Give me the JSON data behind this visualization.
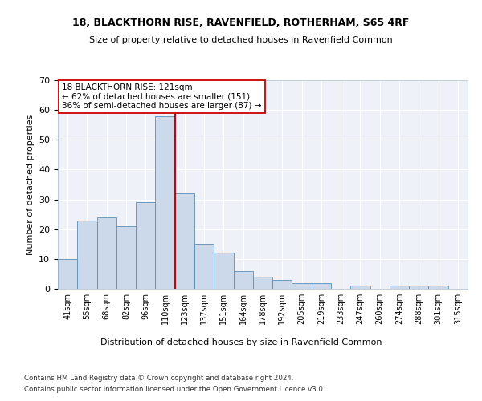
{
  "title1": "18, BLACKTHORN RISE, RAVENFIELD, ROTHERHAM, S65 4RF",
  "title2": "Size of property relative to detached houses in Ravenfield Common",
  "xlabel": "Distribution of detached houses by size in Ravenfield Common",
  "ylabel": "Number of detached properties",
  "categories": [
    "41sqm",
    "55sqm",
    "68sqm",
    "82sqm",
    "96sqm",
    "110sqm",
    "123sqm",
    "137sqm",
    "151sqm",
    "164sqm",
    "178sqm",
    "192sqm",
    "205sqm",
    "219sqm",
    "233sqm",
    "247sqm",
    "260sqm",
    "274sqm",
    "288sqm",
    "301sqm",
    "315sqm"
  ],
  "values": [
    10,
    23,
    24,
    21,
    29,
    58,
    32,
    15,
    12,
    6,
    4,
    3,
    2,
    2,
    0,
    1,
    0,
    1,
    1,
    1,
    0
  ],
  "highlight_bin_idx": 6,
  "bar_color": "#ccd9ea",
  "bar_edge_color": "#5b8db8",
  "highlight_line_color": "#cc0000",
  "annotation_text": "18 BLACKTHORN RISE: 121sqm\n← 62% of detached houses are smaller (151)\n36% of semi-detached houses are larger (87) →",
  "annotation_box_color": "white",
  "annotation_box_edge": "#cc0000",
  "footer1": "Contains HM Land Registry data © Crown copyright and database right 2024.",
  "footer2": "Contains public sector information licensed under the Open Government Licence v3.0.",
  "ylim": [
    0,
    70
  ],
  "yticks": [
    0,
    10,
    20,
    30,
    40,
    50,
    60,
    70
  ],
  "bg_color": "#eef2f8",
  "grid_color": "#ffffff"
}
